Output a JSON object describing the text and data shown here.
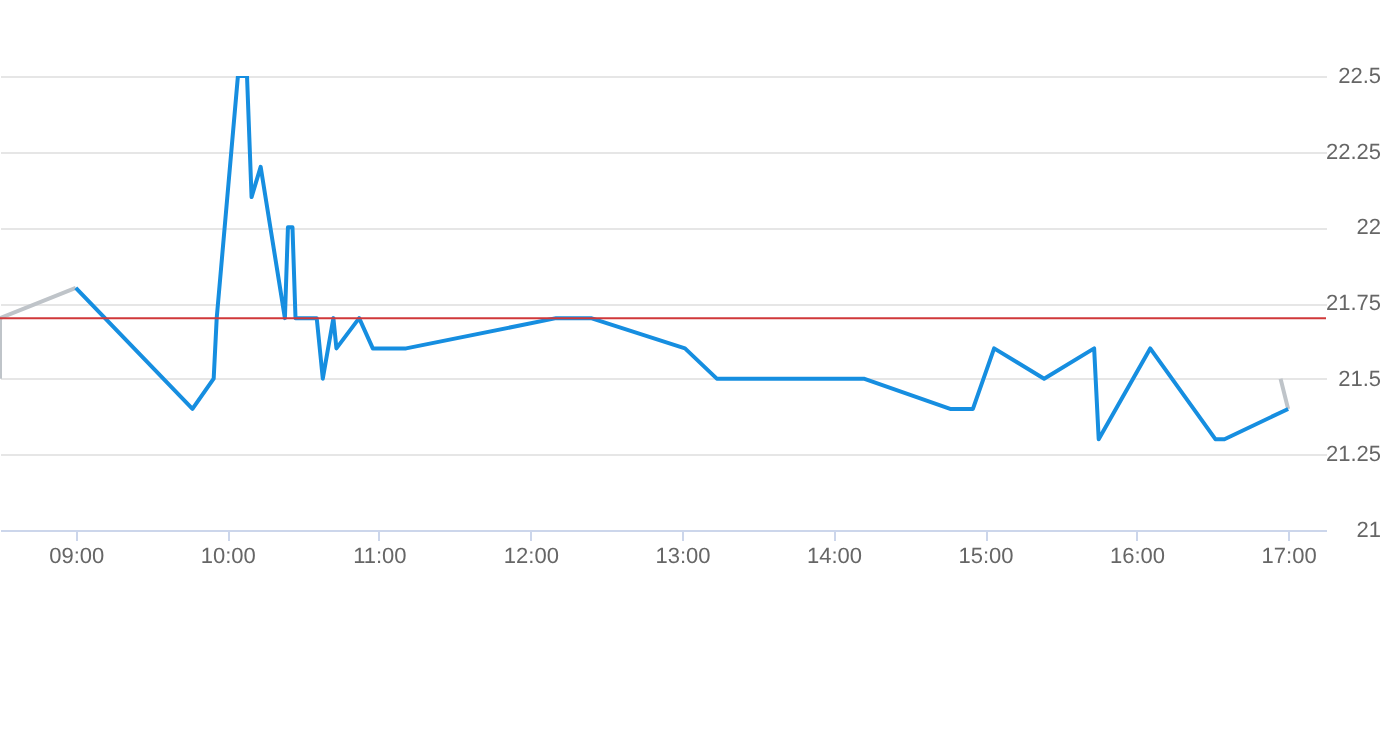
{
  "chart_data": {
    "type": "line",
    "xlim": [
      8.5,
      17.25
    ],
    "ylim": [
      21,
      22.5
    ],
    "xticks": [
      {
        "value": 9,
        "label": "09:00"
      },
      {
        "value": 10,
        "label": "10:00"
      },
      {
        "value": 11,
        "label": "11:00"
      },
      {
        "value": 12,
        "label": "12:00"
      },
      {
        "value": 13,
        "label": "13:00"
      },
      {
        "value": 14,
        "label": "14:00"
      },
      {
        "value": 15,
        "label": "15:00"
      },
      {
        "value": 16,
        "label": "16:00"
      },
      {
        "value": 17,
        "label": "17:00"
      }
    ],
    "yticks": [
      21,
      21.25,
      21.5,
      21.75,
      22,
      22.25,
      22.5
    ],
    "grid": "y",
    "line_style": "solid",
    "marker": "none",
    "ref_lines": [
      {
        "axis": "y",
        "value": 21.7,
        "color": "#d0383a"
      }
    ],
    "series": [
      {
        "color": "#bfc4c9",
        "x": [
          8.5,
          8.5,
          9.0
        ],
        "values": [
          21.5,
          21.7,
          21.8
        ]
      },
      {
        "color": "#bfc4c9",
        "x": [
          16.95,
          17.0
        ],
        "values": [
          21.5,
          21.4
        ]
      },
      {
        "color": "#168ee0",
        "x": [
          9.0,
          9.77,
          9.91,
          9.93,
          10.07,
          10.13,
          10.16,
          10.22,
          10.38,
          10.4,
          10.43,
          10.45,
          10.59,
          10.63,
          10.7,
          10.72,
          10.87,
          10.96,
          11.18,
          12.17,
          12.4,
          13.02,
          13.23,
          14.2,
          14.77,
          14.92,
          15.06,
          15.39,
          15.72,
          15.75,
          16.09,
          16.52,
          16.58,
          17.0
        ],
        "values": [
          21.8,
          21.4,
          21.5,
          21.7,
          22.5,
          22.5,
          22.1,
          22.2,
          21.7,
          22.0,
          22.0,
          21.7,
          21.7,
          21.5,
          21.7,
          21.6,
          21.7,
          21.6,
          21.6,
          21.7,
          21.7,
          21.6,
          21.5,
          21.5,
          21.4,
          21.4,
          21.6,
          21.5,
          21.6,
          21.3,
          21.6,
          21.3,
          21.3,
          21.4
        ]
      }
    ]
  }
}
